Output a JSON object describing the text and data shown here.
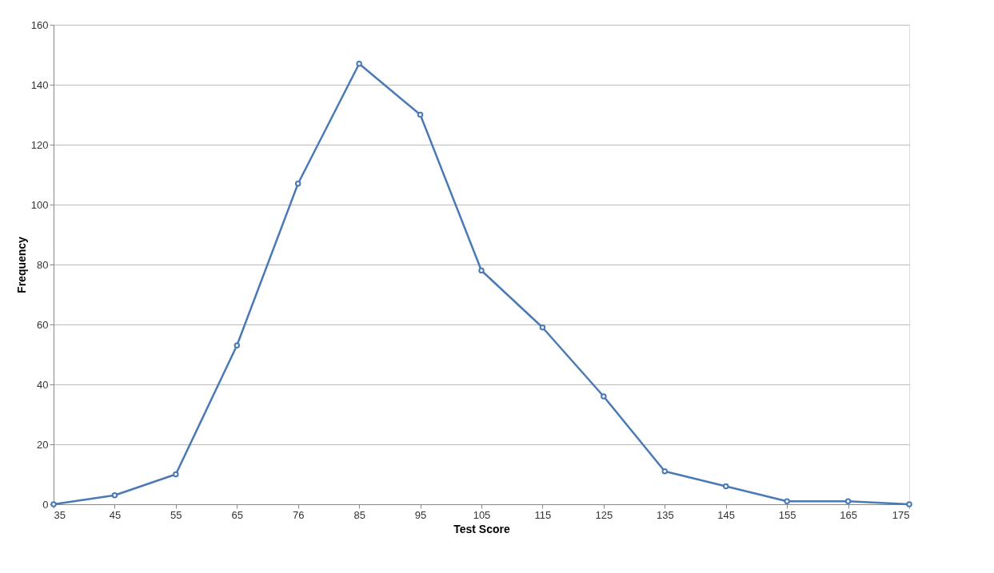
{
  "chart_data": {
    "type": "line",
    "xlabel": "Test Score",
    "ylabel": "Frequency",
    "categories": [
      "35",
      "45",
      "55",
      "65",
      "76",
      "85",
      "95",
      "105",
      "115",
      "125",
      "135",
      "145",
      "155",
      "165",
      "175"
    ],
    "series": [
      {
        "color": "#4a7ab5",
        "values": [
          0,
          3,
          10,
          53,
          107,
          147,
          130,
          78,
          59,
          36,
          11,
          6,
          1,
          1,
          0
        ]
      }
    ],
    "ylim": [
      0,
      160
    ],
    "yticks": [
      0,
      20,
      40,
      60,
      80,
      100,
      120,
      140,
      160
    ],
    "grid": "y",
    "marker": "circle",
    "line_style": "solid"
  }
}
